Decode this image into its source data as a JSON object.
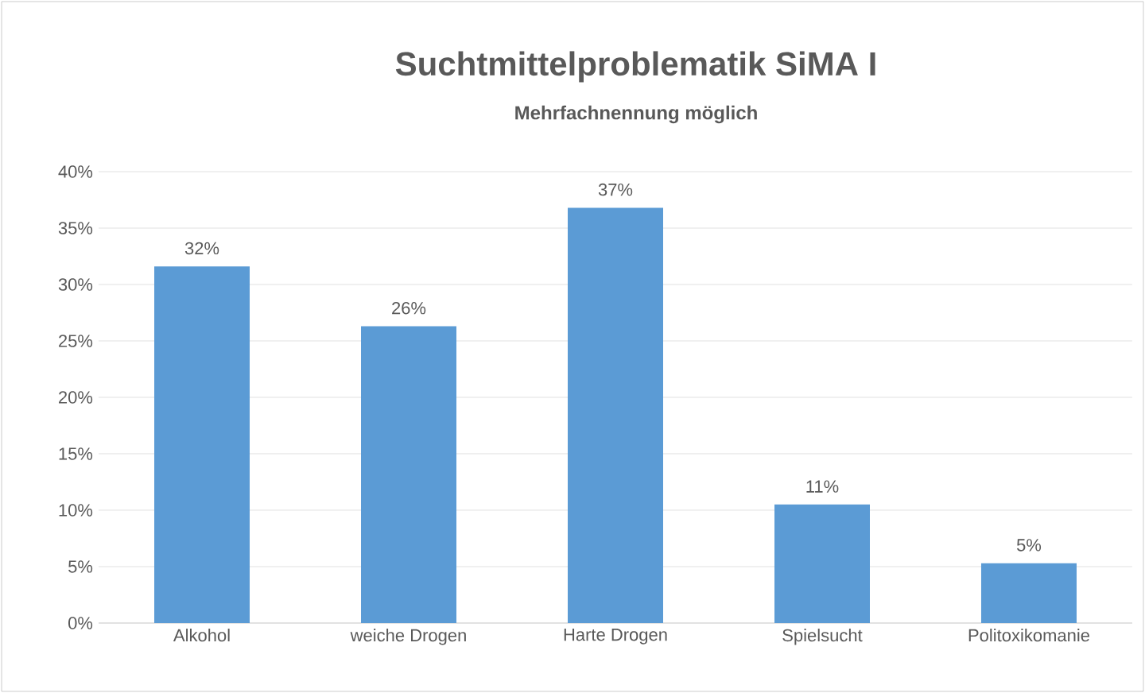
{
  "chart_data": {
    "type": "bar",
    "title": "Suchtmittelproblematik SiMA I",
    "subtitle": "Mehrfachnennung möglich",
    "categories": [
      "Alkohol",
      "weiche Drogen",
      "Harte Drogen",
      "Spielsucht",
      "Politoxikomanie"
    ],
    "values": [
      31.6,
      26.3,
      36.8,
      10.5,
      5.3
    ],
    "value_labels": [
      "32%",
      "26%",
      "37%",
      "11%",
      "5%"
    ],
    "color": "#5b9bd5",
    "ylim": [
      0,
      40
    ],
    "yticks": [
      {
        "value": 0,
        "label": "0%"
      },
      {
        "value": 5,
        "label": "5%"
      },
      {
        "value": 10,
        "label": "10%"
      },
      {
        "value": 15,
        "label": "15%"
      },
      {
        "value": 20,
        "label": "20%"
      },
      {
        "value": 25,
        "label": "25%"
      },
      {
        "value": 30,
        "label": "30%"
      },
      {
        "value": 35,
        "label": "35%"
      },
      {
        "value": 40,
        "label": "40%"
      }
    ],
    "grid": "y"
  }
}
